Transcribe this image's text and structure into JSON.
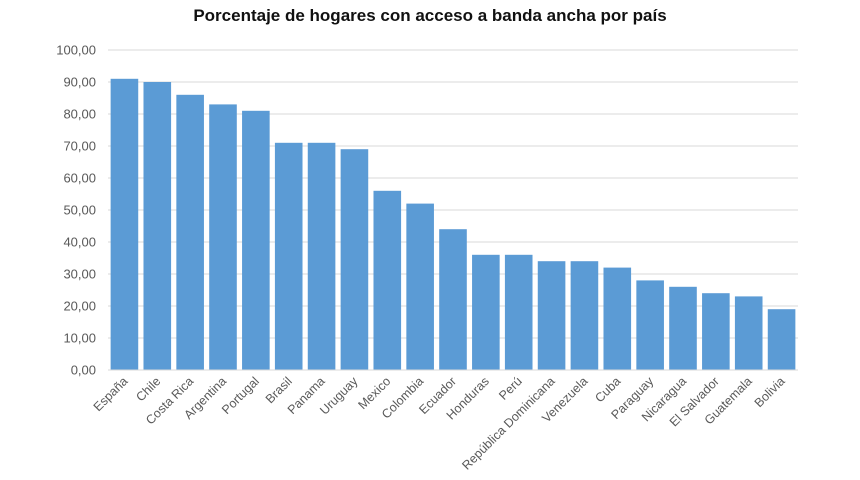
{
  "chart_data": {
    "type": "bar",
    "title": "Porcentaje de hogares con acceso a banda ancha por país",
    "xlabel": "",
    "ylabel": "",
    "categories": [
      "España",
      "Chile",
      "Costa Rica",
      "Argentina",
      "Portugal",
      "Brasil",
      "Panama",
      "Uruguay",
      "Mexico",
      "Colombia",
      "Ecuador",
      "Honduras",
      "Perú",
      "República Dominicana",
      "Venezuela",
      "Cuba",
      "Paraguay",
      "Nicaragua",
      "El Salvador",
      "Guatemala",
      "Bolivia"
    ],
    "values": [
      91,
      90,
      86,
      83,
      81,
      71,
      71,
      69,
      56,
      52,
      44,
      36,
      36,
      34,
      34,
      32,
      28,
      26,
      24,
      23,
      19
    ],
    "ylim": [
      0,
      100
    ],
    "yticks": [
      "0,00",
      "10,00",
      "20,00",
      "30,00",
      "40,00",
      "50,00",
      "60,00",
      "70,00",
      "80,00",
      "90,00",
      "100,00"
    ],
    "grid": true,
    "bar_color": "#5b9bd5",
    "grid_color": "#d9d9d9",
    "text_color": "#595959"
  }
}
